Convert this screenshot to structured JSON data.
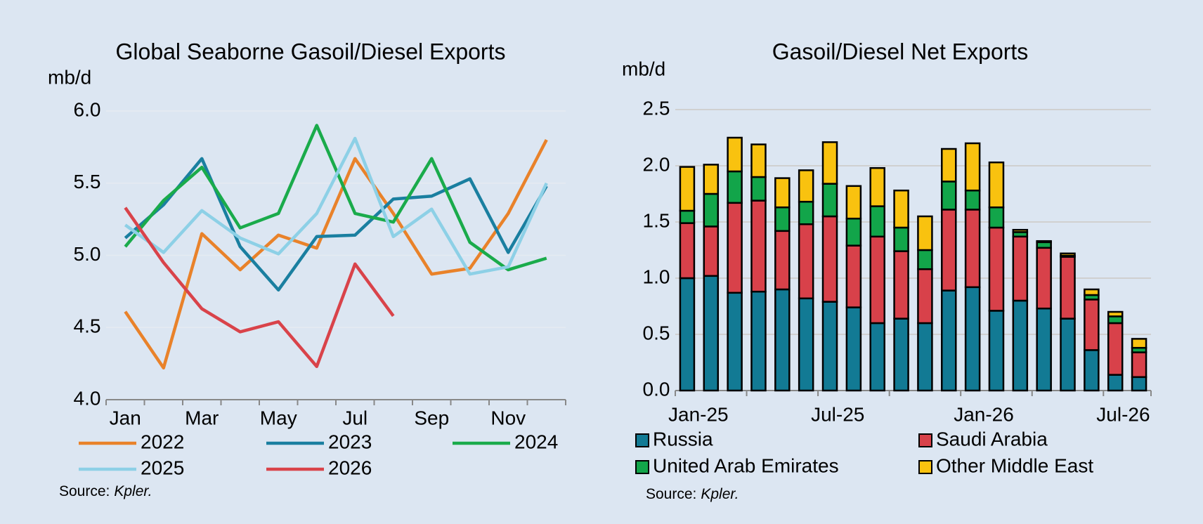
{
  "chart_data": [
    {
      "type": "line",
      "title": "Global Seaborne Gasoil/Diesel Exports",
      "y_label": "mb/d",
      "categories": [
        "Jan",
        null,
        "Mar",
        null,
        "May",
        null,
        "Jul",
        null,
        "Sep",
        null,
        "Nov",
        null
      ],
      "ylim": [
        4.0,
        6.0
      ],
      "yticks": [
        {
          "value": 4.0,
          "label": "4.0"
        },
        4.5,
        {
          "value": 5.0,
          "label": "5.0"
        },
        5.5,
        {
          "value": 6.0,
          "label": "6.0"
        }
      ],
      "grid": true,
      "series": [
        {
          "name": "2022",
          "color": "#e9822a",
          "values": [
            4.61,
            4.22,
            5.15,
            4.9,
            5.14,
            5.05,
            5.67,
            5.29,
            4.87,
            4.91,
            5.29,
            5.8
          ]
        },
        {
          "name": "2023",
          "color": "#1a7fa0",
          "values": [
            5.12,
            5.35,
            5.67,
            5.06,
            4.76,
            5.13,
            5.14,
            5.39,
            5.41,
            5.53,
            5.02,
            5.48
          ]
        },
        {
          "name": "2024",
          "color": "#1aab4b",
          "values": [
            5.06,
            5.38,
            5.61,
            5.19,
            5.29,
            5.9,
            5.29,
            5.23,
            5.67,
            5.09,
            4.9,
            4.98
          ]
        },
        {
          "name": "2025",
          "color": "#8dd0e6",
          "values": [
            5.21,
            5.02,
            5.31,
            5.12,
            5.01,
            5.29,
            5.81,
            5.13,
            5.32,
            4.87,
            4.92,
            5.5
          ]
        },
        {
          "name": "2026",
          "color": "#d9434a",
          "values": [
            5.33,
            4.95,
            4.63,
            4.47,
            4.54,
            4.23,
            4.94,
            4.58,
            null,
            null,
            null,
            null
          ]
        }
      ],
      "source_label": "Source:",
      "source": "Kpler."
    },
    {
      "type": "bar",
      "stacked": true,
      "title": "Gasoil/Diesel Net Exports",
      "y_label": "mb/d",
      "categories": [
        "Jan-25",
        null,
        null,
        null,
        null,
        null,
        "Jul-25",
        null,
        null,
        null,
        null,
        null,
        "Jan-26",
        null,
        null,
        null,
        null,
        null,
        "Jul-26",
        null
      ],
      "ylim": [
        0.0,
        2.5
      ],
      "yticks": [
        {
          "value": 0.0,
          "label": "0.0"
        },
        0.5,
        {
          "value": 1.0,
          "label": "1.0"
        },
        1.5,
        {
          "value": 2.0,
          "label": "2.0"
        },
        2.5
      ],
      "grid": true,
      "series": [
        {
          "name": "Russia",
          "color": "#127a94",
          "values": [
            1.0,
            1.02,
            0.87,
            0.88,
            0.9,
            0.82,
            0.79,
            0.74,
            0.6,
            0.64,
            0.6,
            0.89,
            0.92,
            0.71,
            0.8,
            0.73,
            0.64,
            0.36,
            0.14,
            0.12
          ]
        },
        {
          "name": "Saudi Arabia",
          "color": "#d8414a",
          "values": [
            0.49,
            0.44,
            0.8,
            0.81,
            0.52,
            0.66,
            0.76,
            0.55,
            0.77,
            0.6,
            0.48,
            0.72,
            0.69,
            0.74,
            0.57,
            0.54,
            0.55,
            0.45,
            0.46,
            0.22
          ]
        },
        {
          "name": "United Arab Emirates",
          "color": "#12a54a",
          "values": [
            0.11,
            0.29,
            0.28,
            0.21,
            0.21,
            0.2,
            0.29,
            0.24,
            0.27,
            0.21,
            0.17,
            0.25,
            0.17,
            0.18,
            0.04,
            0.05,
            0.01,
            0.04,
            0.06,
            0.04
          ]
        },
        {
          "name": "Other Middle East",
          "color": "#f9c20f",
          "values": [
            0.39,
            0.26,
            0.3,
            0.29,
            0.26,
            0.28,
            0.37,
            0.29,
            0.34,
            0.33,
            0.3,
            0.29,
            0.42,
            0.4,
            0.02,
            0.01,
            0.02,
            0.05,
            0.04,
            0.08
          ]
        }
      ],
      "source_label": "Source:",
      "source": "Kpler."
    }
  ]
}
